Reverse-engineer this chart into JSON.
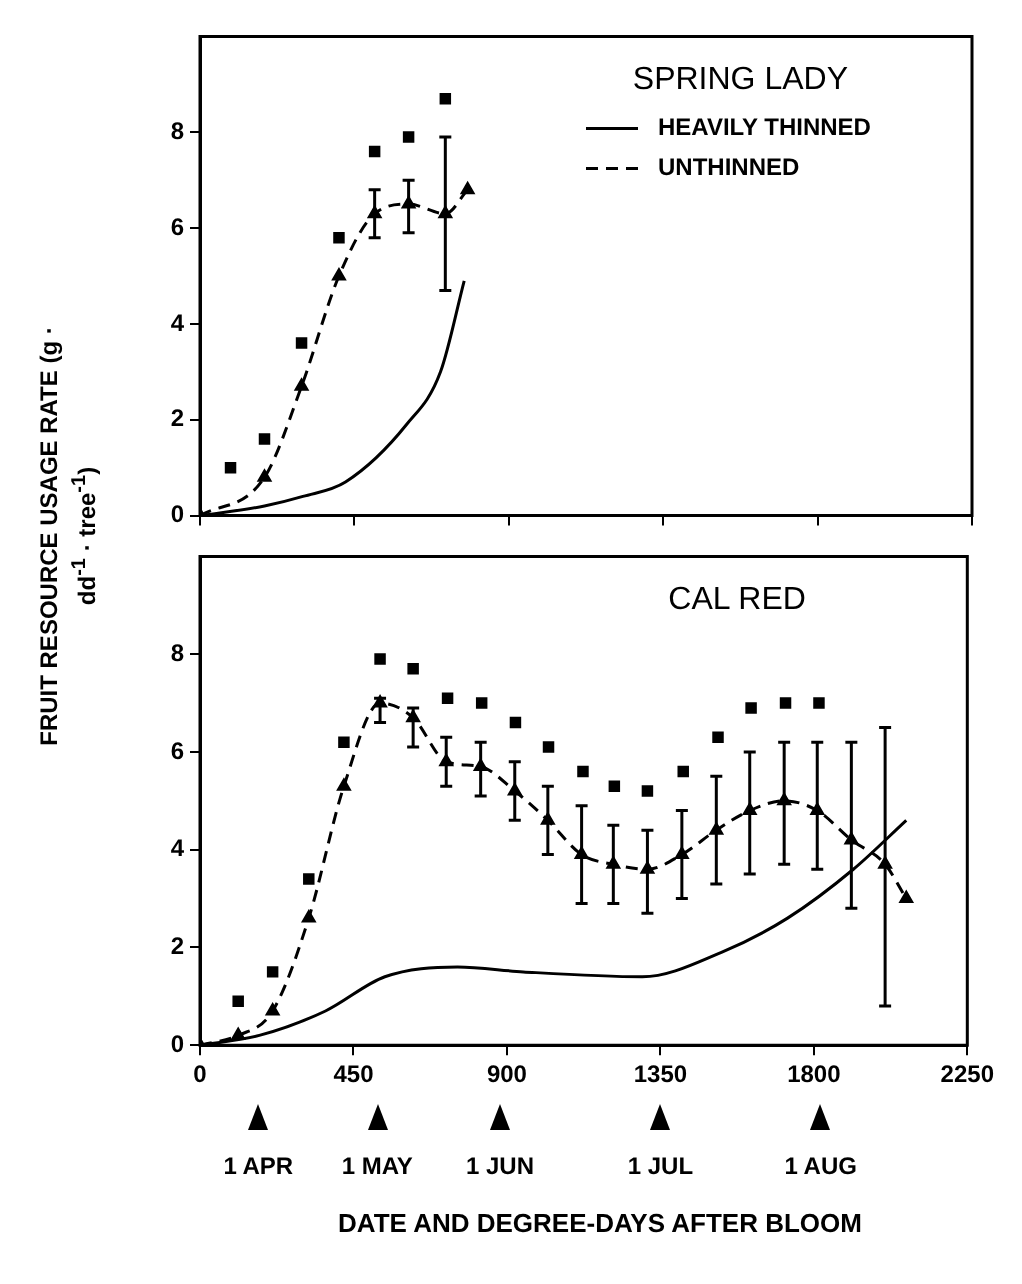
{
  "chart_data": [
    {
      "type": "line",
      "title": "SPRING LADY",
      "legend": "top right",
      "xlim": [
        0,
        2250
      ],
      "xticks": [
        0,
        450,
        900,
        1350,
        1800,
        2250
      ],
      "ylim": [
        0,
        10
      ],
      "yticks": [
        0,
        2,
        4,
        6,
        8
      ],
      "tick_labels": "y",
      "series": [
        {
          "type": "scatter",
          "marker": "square",
          "color": "#000000",
          "x": [
            89,
            188,
            296,
            405,
            509,
            608,
            715
          ],
          "values": [
            1.0,
            1.6,
            3.6,
            5.8,
            7.6,
            7.9,
            8.7
          ]
        },
        {
          "type": "line",
          "name": "HEAVILY THINNED",
          "line_style": "solid",
          "marker": "none",
          "color": "#000000",
          "x": [
            0,
            188,
            300,
            424,
            602,
            701,
            770
          ],
          "values": [
            0,
            0.2,
            0.4,
            0.7,
            1.9,
            3.0,
            4.9
          ]
        },
        {
          "type": "line",
          "name": "UNTHINNED",
          "line_style": "dashed",
          "marker": "triangle",
          "color": "#000000",
          "x": [
            0,
            188,
            296,
            405,
            509,
            608,
            715,
            780
          ],
          "values": [
            0,
            0.8,
            2.7,
            5.0,
            6.3,
            6.5,
            6.3,
            6.8
          ],
          "errors": [
            null,
            null,
            null,
            null,
            [
              5.8,
              6.8
            ],
            [
              5.9,
              7.0
            ],
            [
              4.7,
              7.9
            ],
            null
          ]
        }
      ]
    },
    {
      "type": "line",
      "title": "CAL RED",
      "xlabel": "DATE AND DEGREE-DAYS AFTER BLOOM",
      "ylabel": "FRUIT RESOURCE USAGE RATE (g · dd$^{-1}$ · tree$^{-1}$)",
      "xlim": [
        0,
        2250
      ],
      "xticks": [
        0,
        450,
        900,
        1350,
        1800,
        2250
      ],
      "ylim": [
        0,
        10
      ],
      "yticks": [
        0,
        2,
        4,
        6,
        8
      ],
      "annotations": [
        "1 APR",
        "1 MAY",
        "1 JUN",
        "1 JUL",
        "1 AUG"
      ],
      "series": [
        {
          "type": "scatter",
          "marker": "square",
          "color": "#000000",
          "x": [
            112,
            213,
            319,
            422,
            528,
            625,
            726,
            826,
            925,
            1022,
            1123,
            1215,
            1312,
            1417,
            1519,
            1616,
            1717,
            1815
          ],
          "values": [
            0.9,
            1.5,
            3.4,
            6.2,
            7.9,
            7.7,
            7.1,
            7.0,
            6.6,
            6.1,
            5.6,
            5.3,
            5.2,
            5.6,
            6.3,
            6.9,
            7.0,
            7.0
          ]
        },
        {
          "type": "line",
          "line_style": "solid",
          "marker": "none",
          "color": "#000000",
          "x": [
            0,
            174,
            368,
            542,
            755,
            948,
            1297,
            1529,
            1723,
            1916,
            2071
          ],
          "values": [
            0,
            0.2,
            0.7,
            1.4,
            1.6,
            1.5,
            1.4,
            1.9,
            2.6,
            3.6,
            4.6
          ]
        },
        {
          "type": "line",
          "line_style": "dashed",
          "marker": "triangle",
          "color": "#000000",
          "x": [
            0,
            112,
            213,
            319,
            422,
            528,
            625,
            722,
            823,
            923,
            1020,
            1119,
            1212,
            1312,
            1413,
            1514,
            1612,
            1713,
            1810,
            1910,
            2009,
            2071
          ],
          "values": [
            0,
            0.2,
            0.7,
            2.6,
            5.3,
            7.0,
            6.7,
            5.8,
            5.7,
            5.2,
            4.6,
            3.9,
            3.7,
            3.6,
            3.9,
            4.4,
            4.8,
            5.0,
            4.8,
            4.2,
            3.7,
            3.0
          ],
          "errors": [
            null,
            null,
            null,
            null,
            null,
            [
              6.6,
              7.1
            ],
            [
              6.1,
              6.9
            ],
            [
              5.3,
              6.3
            ],
            [
              5.1,
              6.2
            ],
            [
              4.6,
              5.8
            ],
            [
              3.9,
              5.3
            ],
            [
              2.9,
              4.9
            ],
            [
              2.9,
              4.5
            ],
            [
              2.7,
              4.4
            ],
            [
              3.0,
              4.8
            ],
            [
              3.3,
              5.5
            ],
            [
              3.5,
              6.0
            ],
            [
              3.7,
              6.2
            ],
            [
              3.6,
              6.2
            ],
            [
              2.8,
              6.2
            ],
            [
              0.8,
              6.5
            ],
            null
          ]
        }
      ]
    }
  ]
}
